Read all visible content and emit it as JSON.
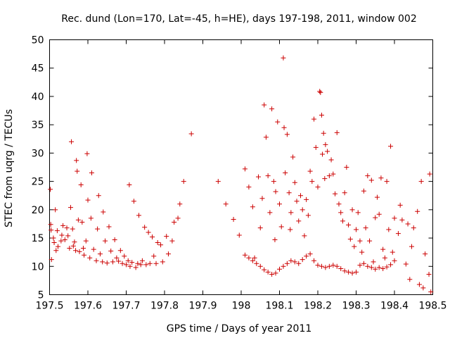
{
  "chart_data": {
    "type": "scatter",
    "title": "Rec. dund (Lon=170, Lat=-45, h=HE), days 197-198, 2011, window 002",
    "xlabel": "GPS time / Days of year 2011",
    "ylabel": "STEC from uqrg / TECUs",
    "xlim": [
      197.5,
      198.5
    ],
    "ylim": [
      5,
      50
    ],
    "x_ticks": [
      197.5,
      197.6,
      197.7,
      197.8,
      197.9,
      198,
      198.1,
      198.2,
      198.3,
      198.4,
      198.5
    ],
    "x_tick_labels": [
      "197.5",
      "197.6",
      "197.7",
      "197.8",
      "197.9",
      "198",
      "198.1",
      "198.2",
      "198.3",
      "198.4",
      "198.5"
    ],
    "y_ticks": [
      5,
      10,
      15,
      20,
      25,
      30,
      35,
      40,
      45,
      50
    ],
    "y_tick_labels": [
      "5",
      "10",
      "15",
      "20",
      "25",
      "30",
      "35",
      "40",
      "45",
      "50"
    ],
    "grid": false,
    "marker": "plus",
    "color": "#cc0000",
    "points": [
      [
        197.502,
        23.6
      ],
      [
        197.503,
        17.4
      ],
      [
        197.504,
        16.4
      ],
      [
        197.505,
        11.2
      ],
      [
        197.51,
        15.0
      ],
      [
        197.512,
        14.2
      ],
      [
        197.515,
        20.0
      ],
      [
        197.517,
        12.8
      ],
      [
        197.52,
        16.3
      ],
      [
        197.522,
        13.5
      ],
      [
        197.53,
        14.5
      ],
      [
        197.532,
        15.5
      ],
      [
        197.535,
        17.2
      ],
      [
        197.54,
        14.7
      ],
      [
        197.545,
        16.8
      ],
      [
        197.548,
        15.4
      ],
      [
        197.552,
        13.2
      ],
      [
        197.555,
        20.4
      ],
      [
        197.557,
        32.0
      ],
      [
        197.56,
        16.6
      ],
      [
        197.562,
        13.6
      ],
      [
        197.565,
        14.3
      ],
      [
        197.568,
        12.8
      ],
      [
        197.57,
        28.7
      ],
      [
        197.572,
        26.8
      ],
      [
        197.575,
        18.2
      ],
      [
        197.578,
        12.6
      ],
      [
        197.582,
        24.4
      ],
      [
        197.585,
        17.8
      ],
      [
        197.588,
        13.2
      ],
      [
        197.59,
        12.0
      ],
      [
        197.595,
        14.5
      ],
      [
        197.598,
        29.9
      ],
      [
        197.6,
        21.7
      ],
      [
        197.605,
        11.5
      ],
      [
        197.608,
        18.5
      ],
      [
        197.61,
        26.5
      ],
      [
        197.615,
        13.0
      ],
      [
        197.622,
        11.0
      ],
      [
        197.625,
        16.6
      ],
      [
        197.628,
        22.5
      ],
      [
        197.632,
        12.2
      ],
      [
        197.638,
        10.8
      ],
      [
        197.64,
        19.6
      ],
      [
        197.645,
        14.5
      ],
      [
        197.65,
        10.6
      ],
      [
        197.655,
        17.0
      ],
      [
        197.66,
        12.7
      ],
      [
        197.665,
        10.8
      ],
      [
        197.67,
        14.7
      ],
      [
        197.675,
        11.5
      ],
      [
        197.68,
        10.9
      ],
      [
        197.685,
        12.8
      ],
      [
        197.69,
        10.5
      ],
      [
        197.695,
        11.8
      ],
      [
        197.7,
        10.3
      ],
      [
        197.705,
        11.0
      ],
      [
        197.708,
        24.4
      ],
      [
        197.71,
        10.0
      ],
      [
        197.715,
        10.7
      ],
      [
        197.72,
        21.5
      ],
      [
        197.725,
        9.8
      ],
      [
        197.73,
        10.5
      ],
      [
        197.733,
        19.0
      ],
      [
        197.738,
        10.3
      ],
      [
        197.742,
        11.0
      ],
      [
        197.748,
        16.9
      ],
      [
        197.752,
        10.3
      ],
      [
        197.758,
        16.0
      ],
      [
        197.762,
        10.5
      ],
      [
        197.768,
        15.2
      ],
      [
        197.772,
        11.8
      ],
      [
        197.778,
        10.5
      ],
      [
        197.782,
        14.2
      ],
      [
        197.79,
        13.8
      ],
      [
        197.795,
        10.8
      ],
      [
        197.805,
        15.3
      ],
      [
        197.81,
        12.2
      ],
      [
        197.82,
        14.5
      ],
      [
        197.825,
        17.8
      ],
      [
        197.835,
        18.5
      ],
      [
        197.84,
        21.0
      ],
      [
        197.85,
        25.0
      ],
      [
        197.87,
        33.4
      ],
      [
        197.94,
        25.0
      ],
      [
        197.96,
        21.0
      ],
      [
        197.98,
        18.3
      ],
      [
        197.995,
        15.5
      ],
      [
        198.01,
        27.2
      ],
      [
        198.02,
        24.0
      ],
      [
        198.03,
        20.5
      ],
      [
        198.035,
        11.5
      ],
      [
        198.045,
        25.8
      ],
      [
        198.05,
        16.8
      ],
      [
        198.055,
        22.0
      ],
      [
        198.06,
        38.5
      ],
      [
        198.065,
        32.8
      ],
      [
        198.07,
        26.0
      ],
      [
        198.075,
        19.5
      ],
      [
        198.08,
        37.8
      ],
      [
        198.085,
        25.0
      ],
      [
        198.088,
        14.7
      ],
      [
        198.09,
        23.2
      ],
      [
        198.095,
        35.5
      ],
      [
        198.1,
        21.0
      ],
      [
        198.105,
        17.0
      ],
      [
        198.11,
        46.8
      ],
      [
        198.112,
        34.5
      ],
      [
        198.115,
        26.5
      ],
      [
        198.12,
        33.3
      ],
      [
        198.125,
        23.0
      ],
      [
        198.128,
        16.5
      ],
      [
        198.13,
        19.5
      ],
      [
        198.135,
        29.3
      ],
      [
        198.14,
        24.8
      ],
      [
        198.145,
        21.5
      ],
      [
        198.15,
        18.0
      ],
      [
        198.155,
        22.5
      ],
      [
        198.16,
        20.0
      ],
      [
        198.165,
        15.4
      ],
      [
        198.17,
        21.8
      ],
      [
        198.175,
        19.0
      ],
      [
        198.18,
        26.8
      ],
      [
        198.185,
        25.0
      ],
      [
        198.19,
        36.0
      ],
      [
        198.195,
        31.0
      ],
      [
        198.2,
        24.0
      ],
      [
        198.205,
        40.9
      ],
      [
        198.207,
        40.7
      ],
      [
        198.21,
        36.7
      ],
      [
        198.212,
        29.8
      ],
      [
        198.215,
        33.5
      ],
      [
        198.218,
        25.5
      ],
      [
        198.22,
        31.5
      ],
      [
        198.225,
        30.3
      ],
      [
        198.23,
        26.0
      ],
      [
        198.235,
        28.8
      ],
      [
        198.24,
        26.3
      ],
      [
        198.245,
        22.8
      ],
      [
        198.25,
        33.6
      ],
      [
        198.255,
        21.0
      ],
      [
        198.26,
        19.5
      ],
      [
        198.265,
        18.0
      ],
      [
        198.27,
        23.0
      ],
      [
        198.275,
        27.5
      ],
      [
        198.28,
        17.3
      ],
      [
        198.285,
        14.8
      ],
      [
        198.29,
        20.0
      ],
      [
        198.295,
        13.5
      ],
      [
        198.3,
        16.5
      ],
      [
        198.305,
        19.5
      ],
      [
        198.31,
        14.5
      ],
      [
        198.315,
        12.5
      ],
      [
        198.32,
        23.3
      ],
      [
        198.325,
        16.8
      ],
      [
        198.33,
        26.0
      ],
      [
        198.335,
        14.5
      ],
      [
        198.34,
        25.2
      ],
      [
        198.345,
        10.8
      ],
      [
        198.35,
        18.6
      ],
      [
        198.355,
        22.2
      ],
      [
        198.36,
        19.2
      ],
      [
        198.365,
        25.6
      ],
      [
        198.37,
        13.0
      ],
      [
        198.375,
        11.5
      ],
      [
        198.38,
        25.0
      ],
      [
        198.385,
        16.5
      ],
      [
        198.39,
        31.2
      ],
      [
        198.395,
        12.5
      ],
      [
        198.4,
        18.5
      ],
      [
        198.41,
        15.8
      ],
      [
        198.415,
        20.8
      ],
      [
        198.42,
        18.2
      ],
      [
        198.43,
        10.4
      ],
      [
        198.435,
        17.5
      ],
      [
        198.44,
        7.7
      ],
      [
        198.445,
        13.5
      ],
      [
        198.45,
        16.8
      ],
      [
        198.46,
        19.7
      ],
      [
        198.465,
        6.8
      ],
      [
        198.47,
        25.0
      ],
      [
        198.475,
        6.2
      ],
      [
        198.48,
        12.2
      ],
      [
        198.49,
        8.6
      ],
      [
        198.492,
        26.3
      ],
      [
        198.495,
        5.5
      ],
      [
        198.01,
        12.0
      ],
      [
        198.02,
        11.5
      ],
      [
        198.03,
        11.0
      ],
      [
        198.04,
        10.5
      ],
      [
        198.05,
        10.0
      ],
      [
        198.06,
        9.4
      ],
      [
        198.07,
        9.0
      ],
      [
        198.08,
        8.6
      ],
      [
        198.09,
        8.8
      ],
      [
        198.1,
        9.5
      ],
      [
        198.11,
        10.0
      ],
      [
        198.12,
        10.5
      ],
      [
        198.13,
        11.0
      ],
      [
        198.14,
        10.8
      ],
      [
        198.15,
        10.5
      ],
      [
        198.16,
        11.2
      ],
      [
        198.17,
        11.8
      ],
      [
        198.18,
        12.2
      ],
      [
        198.19,
        11.0
      ],
      [
        198.2,
        10.2
      ],
      [
        198.21,
        10.0
      ],
      [
        198.22,
        9.8
      ],
      [
        198.23,
        10.0
      ],
      [
        198.24,
        10.2
      ],
      [
        198.25,
        10.0
      ],
      [
        198.26,
        9.6
      ],
      [
        198.27,
        9.2
      ],
      [
        198.28,
        9.0
      ],
      [
        198.29,
        8.8
      ],
      [
        198.3,
        9.0
      ],
      [
        198.31,
        10.2
      ],
      [
        198.32,
        10.5
      ],
      [
        198.33,
        10.0
      ],
      [
        198.34,
        9.8
      ],
      [
        198.35,
        9.5
      ],
      [
        198.36,
        9.8
      ],
      [
        198.37,
        9.6
      ],
      [
        198.38,
        9.9
      ],
      [
        198.39,
        10.3
      ],
      [
        198.4,
        11.0
      ]
    ]
  }
}
